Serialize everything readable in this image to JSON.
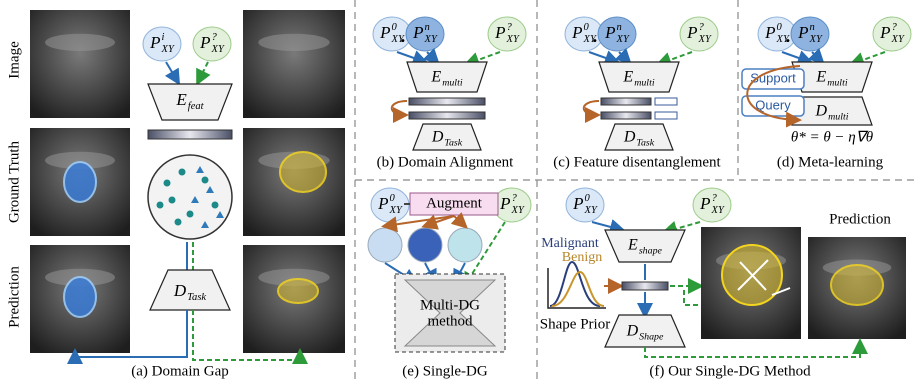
{
  "panel_a": {
    "caption": "(a) Domain Gap",
    "row_labels": [
      "Image",
      "Ground Truth",
      "Prediction"
    ],
    "source": {
      "base": "P",
      "sup": "i",
      "sub": "XY"
    },
    "target": {
      "base": "P",
      "sup": "?",
      "sub": "XY"
    },
    "encoder": {
      "base": "E",
      "sub": "feat"
    },
    "decoder": {
      "base": "D",
      "sub": "Task"
    }
  },
  "panel_b": {
    "caption": "(b) Domain Alignment",
    "source_first": {
      "base": "P",
      "sup": "0",
      "sub": "XY"
    },
    "source_last": {
      "base": "P",
      "sup": "n",
      "sub": "XY"
    },
    "target": {
      "base": "P",
      "sup": "?",
      "sub": "XY"
    },
    "encoder": {
      "base": "E",
      "sub": "multi"
    },
    "decoder": {
      "base": "D",
      "sub": "Task"
    }
  },
  "panel_c": {
    "caption": "(c) Feature disentanglement",
    "source_first": {
      "base": "P",
      "sup": "0",
      "sub": "XY"
    },
    "source_last": {
      "base": "P",
      "sup": "n",
      "sub": "XY"
    },
    "target": {
      "base": "P",
      "sup": "?",
      "sub": "XY"
    },
    "encoder": {
      "base": "E",
      "sub": "multi"
    },
    "decoder": {
      "base": "D",
      "sub": "Task"
    }
  },
  "panel_d": {
    "caption": "(d) Meta-learning",
    "source_first": {
      "base": "P",
      "sup": "0",
      "sub": "XY"
    },
    "source_last": {
      "base": "P",
      "sup": "n",
      "sub": "XY"
    },
    "target": {
      "base": "P",
      "sup": "?",
      "sub": "XY"
    },
    "encoder": {
      "base": "E",
      "sub": "multi"
    },
    "decoder": {
      "base": "D",
      "sub": "multi"
    },
    "support": "Support",
    "query": "Query",
    "formula": "θ* = θ − η∇θ"
  },
  "panel_e": {
    "caption": "(e) Single-DG",
    "source": {
      "base": "P",
      "sup": "0",
      "sub": "XY"
    },
    "target": {
      "base": "P",
      "sup": "?",
      "sub": "XY"
    },
    "augment": "Augment",
    "method": [
      "Multi-DG",
      "method"
    ]
  },
  "panel_f": {
    "caption": "(f) Our Single-DG Method",
    "source": {
      "base": "P",
      "sup": "0",
      "sub": "XY"
    },
    "target": {
      "base": "P",
      "sup": "?",
      "sub": "XY"
    },
    "encoder": {
      "base": "E",
      "sub": "shape"
    },
    "decoder": {
      "base": "D",
      "sub": "Shape"
    },
    "malignant": "Malignant",
    "benign": "Benign",
    "shape_prior": "Shape Prior",
    "prediction": "Prediction"
  }
}
